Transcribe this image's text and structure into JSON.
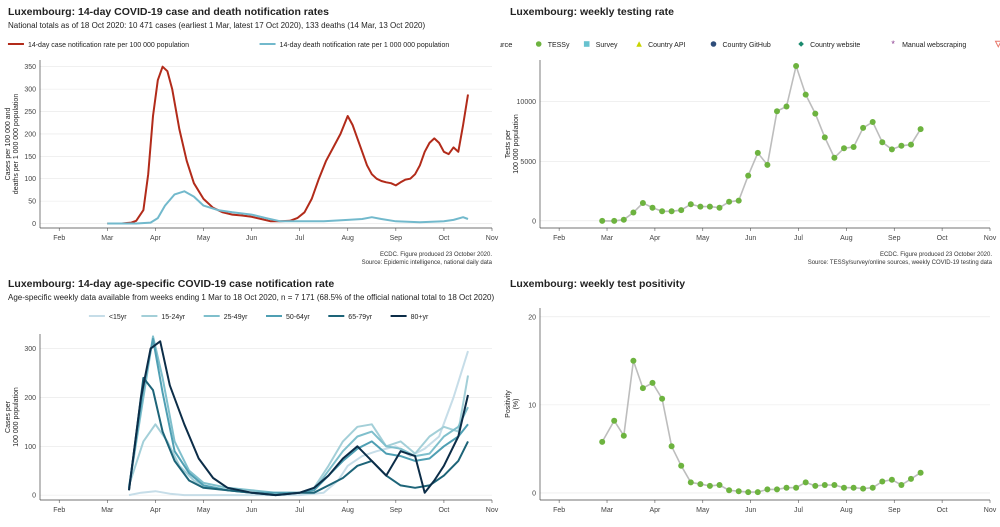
{
  "panels": {
    "p1": {
      "title": "Luxembourg: 14-day COVID-19 case and death notification rates",
      "subtitle": "National totals as of 18 Oct 2020: 10 471 cases (earliest 1 Mar, latest 17 Oct 2020), 133 deaths (14 Mar, 13 Oct 2020)",
      "footer1": "ECDC. Figure produced 23 October 2020.",
      "footer2": "Source: Epidemic intelligence, national daily data"
    },
    "p2": {
      "title": "Luxembourg: weekly testing rate",
      "footer1": "ECDC. Figure produced 23 October 2020.",
      "footer2": "Source: TESSy/survey/online sources, weekly COVID-19 testing data"
    },
    "p3": {
      "title": "Luxembourg: 14-day age-specific COVID-19 case notification rate",
      "subtitle": "Age-specific weekly data available from weeks ending 1 Mar to 18 Oct 2020, n = 7 171 (68.5% of the official national total to 18 Oct 2020)"
    },
    "p4": {
      "title": "Luxembourg: weekly test positivity"
    }
  },
  "chart_data": [
    {
      "type": "line",
      "title": "Luxembourg: 14-day COVID-19 case and death notification rates",
      "ylabel": "Cases per 100 000 and deaths per 1 000 000 population",
      "ylabel_lines": [
        "Cases per 100 000 and",
        "deaths per 1 000 000 population"
      ],
      "x_ticks": [
        "Feb",
        "Mar",
        "Apr",
        "May",
        "Jun",
        "Jul",
        "Aug",
        "Sep",
        "Oct",
        "Nov"
      ],
      "y_ticks": [
        "0",
        "50",
        "100",
        "150",
        "200",
        "250",
        "300",
        "350"
      ],
      "xlim_month": [
        0.6,
        10.0
      ],
      "ylim": [
        -10,
        365
      ],
      "legend_position": "top",
      "grid": true,
      "series": [
        {
          "name": "14-day case notification rate per 100 000 population",
          "color": "#b22b1a",
          "x": [
            2.0,
            2.3,
            2.5,
            2.6,
            2.75,
            2.85,
            2.95,
            3.05,
            3.15,
            3.25,
            3.35,
            3.5,
            3.65,
            3.8,
            4.0,
            4.2,
            4.4,
            4.6,
            4.8,
            5.0,
            5.2,
            5.4,
            5.6,
            5.8,
            5.95,
            6.1,
            6.25,
            6.4,
            6.55,
            6.7,
            6.85,
            7.0,
            7.1,
            7.2,
            7.3,
            7.4,
            7.5,
            7.6,
            7.7,
            7.8,
            7.9,
            8.0,
            8.1,
            8.2,
            8.3,
            8.4,
            8.5,
            8.6,
            8.7,
            8.8,
            8.9,
            9.0,
            9.1,
            9.2,
            9.3,
            9.4,
            9.5
          ],
          "y": [
            0,
            0,
            2,
            6,
            30,
            110,
            240,
            320,
            350,
            340,
            300,
            210,
            140,
            90,
            55,
            35,
            25,
            20,
            18,
            15,
            10,
            5,
            5,
            6,
            12,
            25,
            55,
            100,
            140,
            170,
            200,
            240,
            220,
            190,
            160,
            130,
            110,
            100,
            95,
            92,
            90,
            85,
            92,
            98,
            100,
            110,
            130,
            160,
            180,
            190,
            180,
            160,
            155,
            170,
            160,
            220,
            288
          ]
        },
        {
          "name": "14-day death notification rate per 1 000 000 population",
          "color": "#72b9cc",
          "x": [
            2.0,
            2.6,
            2.9,
            3.05,
            3.2,
            3.4,
            3.6,
            3.8,
            4.0,
            4.3,
            4.6,
            5.0,
            5.3,
            5.6,
            6.0,
            6.5,
            7.0,
            7.3,
            7.5,
            7.7,
            8.0,
            8.5,
            9.0,
            9.2,
            9.4,
            9.5
          ],
          "y": [
            0,
            0,
            2,
            12,
            40,
            65,
            72,
            60,
            40,
            30,
            25,
            20,
            12,
            5,
            5,
            5,
            8,
            10,
            14,
            10,
            5,
            3,
            5,
            8,
            14,
            10
          ]
        }
      ]
    },
    {
      "type": "scatter",
      "title": "Luxembourg: weekly testing rate",
      "ylabel": "Tests per 100 000 population",
      "ylabel_lines": [
        "Tests per",
        "100 000 population"
      ],
      "x_ticks": [
        "Feb",
        "Mar",
        "Apr",
        "May",
        "Jun",
        "Jul",
        "Aug",
        "Sep",
        "Oct",
        "Nov"
      ],
      "y_ticks": [
        "0",
        "5000",
        "10000"
      ],
      "xlim_month": [
        0.6,
        10.0
      ],
      "ylim": [
        -600,
        13500
      ],
      "legend_title": "Source",
      "legend_position": "top",
      "legend": [
        {
          "name": "TESSy",
          "color": "#6db33f",
          "shape": "circle"
        },
        {
          "name": "Survey",
          "color": "#67c2cf",
          "shape": "square"
        },
        {
          "name": "Country API",
          "color": "#c8d400",
          "shape": "triangle"
        },
        {
          "name": "Country GitHub",
          "color": "#2e4d7a",
          "shape": "circle"
        },
        {
          "name": "Country website",
          "color": "#1a8a6e",
          "shape": "diamond"
        },
        {
          "name": "Manual webscraping",
          "color": "#8a3b8f",
          "shape": "star"
        },
        {
          "name": "Other",
          "color": "#e8776a",
          "shape": "triangle-down"
        }
      ],
      "grid": true,
      "series": [
        {
          "name": "TESSy",
          "color": "#6db33f",
          "x": [
            1.9,
            2.15,
            2.35,
            2.55,
            2.75,
            2.95,
            3.15,
            3.35,
            3.55,
            3.75,
            3.95,
            4.15,
            4.35,
            4.55,
            4.75,
            4.95,
            5.15,
            5.35,
            5.55,
            5.75,
            5.95,
            6.15,
            6.35,
            6.55,
            6.75,
            6.95,
            7.15,
            7.35,
            7.55,
            7.75,
            7.95,
            8.15,
            8.35,
            8.55,
            8.75,
            8.95,
            9.15,
            9.35,
            9.55
          ],
          "y": [
            0,
            0,
            100,
            700,
            1500,
            1100,
            800,
            800,
            900,
            1400,
            1200,
            1200,
            1100,
            1600,
            1700,
            3800,
            5700,
            4700,
            9200,
            9600,
            13000,
            10600,
            9000,
            7000,
            5300,
            6100,
            6200,
            7800,
            8300,
            6600,
            6000,
            6300,
            6400,
            7700,
            7800,
            7800,
            7800,
            7800,
            7800
          ]
        }
      ]
    },
    {
      "type": "line",
      "title": "Luxembourg: 14-day age-specific COVID-19 case notification rate",
      "ylabel": "Cases per 100 000 population",
      "ylabel_lines": [
        "Cases per",
        "100 000 population"
      ],
      "x_ticks": [
        "Feb",
        "Mar",
        "Apr",
        "May",
        "Jun",
        "Jul",
        "Aug",
        "Sep",
        "Oct",
        "Nov"
      ],
      "y_ticks": [
        "0",
        "100",
        "200",
        "300"
      ],
      "xlim_month": [
        0.6,
        10.0
      ],
      "ylim": [
        -10,
        330
      ],
      "legend_position": "top",
      "grid": true,
      "series": [
        {
          "name": "<15yr",
          "color": "#c6dde8",
          "x": [
            2.45,
            2.7,
            3.0,
            3.3,
            3.6,
            4.0,
            4.5,
            5.0,
            5.5,
            6.0,
            6.5,
            6.8,
            7.0,
            7.3,
            7.6,
            8.0,
            8.3,
            8.6,
            8.9,
            9.2,
            9.5
          ],
          "y": [
            0,
            5,
            8,
            3,
            0,
            0,
            0,
            0,
            0,
            0,
            5,
            30,
            60,
            80,
            90,
            100,
            80,
            95,
            120,
            200,
            295
          ]
        },
        {
          "name": "15-24yr",
          "color": "#a3cfd8",
          "x": [
            2.45,
            2.75,
            3.0,
            3.25,
            3.5,
            3.8,
            4.1,
            4.5,
            5.0,
            5.5,
            6.0,
            6.3,
            6.6,
            6.9,
            7.2,
            7.5,
            7.8,
            8.1,
            8.4,
            8.7,
            9.0,
            9.3,
            9.5
          ],
          "y": [
            20,
            110,
            145,
            110,
            60,
            30,
            15,
            10,
            5,
            5,
            5,
            15,
            60,
            110,
            140,
            145,
            100,
            110,
            85,
            120,
            140,
            130,
            245
          ]
        },
        {
          "name": "25-49yr",
          "color": "#7fbfcc",
          "x": [
            2.45,
            2.75,
            2.95,
            3.15,
            3.4,
            3.7,
            4.0,
            4.5,
            5.0,
            5.5,
            6.0,
            6.3,
            6.6,
            6.9,
            7.2,
            7.5,
            7.8,
            8.1,
            8.4,
            8.7,
            9.0,
            9.3,
            9.5
          ],
          "y": [
            15,
            200,
            325,
            240,
            110,
            50,
            25,
            15,
            10,
            5,
            5,
            10,
            50,
            90,
            120,
            130,
            100,
            95,
            80,
            85,
            120,
            140,
            180
          ]
        },
        {
          "name": "50-64yr",
          "color": "#4f9fb3",
          "x": [
            2.45,
            2.75,
            2.95,
            3.15,
            3.4,
            3.7,
            4.0,
            4.5,
            5.0,
            5.5,
            6.0,
            6.3,
            6.6,
            6.9,
            7.2,
            7.5,
            7.8,
            8.1,
            8.4,
            8.7,
            9.0,
            9.3,
            9.5
          ],
          "y": [
            15,
            220,
            320,
            210,
            90,
            45,
            20,
            10,
            5,
            5,
            5,
            10,
            40,
            70,
            95,
            110,
            85,
            80,
            70,
            75,
            100,
            120,
            145
          ]
        },
        {
          "name": "65-79yr",
          "color": "#1d6478",
          "x": [
            2.45,
            2.75,
            2.95,
            3.15,
            3.4,
            3.7,
            4.0,
            4.5,
            5.0,
            5.5,
            6.0,
            6.3,
            6.6,
            6.9,
            7.2,
            7.5,
            7.8,
            8.1,
            8.4,
            8.7,
            9.0,
            9.3,
            9.5
          ],
          "y": [
            10,
            240,
            215,
            130,
            70,
            30,
            15,
            10,
            5,
            0,
            5,
            5,
            20,
            35,
            60,
            70,
            40,
            20,
            15,
            20,
            40,
            70,
            110
          ]
        },
        {
          "name": "80+yr",
          "color": "#0c2d48",
          "x": [
            2.45,
            2.7,
            2.9,
            3.1,
            3.3,
            3.6,
            3.9,
            4.2,
            4.5,
            5.0,
            5.5,
            6.0,
            6.3,
            6.6,
            6.9,
            7.2,
            7.5,
            7.8,
            8.1,
            8.4,
            8.6,
            8.8,
            9.0,
            9.3,
            9.5
          ],
          "y": [
            10,
            200,
            300,
            315,
            225,
            145,
            75,
            35,
            15,
            5,
            0,
            5,
            15,
            40,
            75,
            100,
            70,
            40,
            90,
            80,
            5,
            30,
            60,
            120,
            205
          ]
        }
      ]
    },
    {
      "type": "scatter",
      "title": "Luxembourg: weekly test positivity",
      "ylabel": "Positivity (%)",
      "ylabel_lines": [
        "Positivity",
        "(%)"
      ],
      "x_ticks": [
        "Feb",
        "Mar",
        "Apr",
        "May",
        "Jun",
        "Jul",
        "Aug",
        "Sep",
        "Oct",
        "Nov"
      ],
      "y_ticks": [
        "0",
        "10",
        "20"
      ],
      "xlim_month": [
        0.6,
        10.0
      ],
      "ylim": [
        -0.8,
        21
      ],
      "grid": true,
      "series": [
        {
          "name": "TESSy",
          "color": "#6db33f",
          "x": [
            1.9,
            2.15,
            2.35,
            2.55,
            2.75,
            2.95,
            3.15,
            3.35,
            3.55,
            3.75,
            3.95,
            4.15,
            4.35,
            4.55,
            4.75,
            4.95,
            5.15,
            5.35,
            5.55,
            5.75,
            5.95,
            6.15,
            6.35,
            6.55,
            6.75,
            6.95,
            7.15,
            7.35,
            7.55,
            7.75,
            7.95,
            8.15,
            8.35,
            8.55,
            8.75,
            8.95,
            9.15,
            9.35,
            9.55
          ],
          "y": [
            5.8,
            8.2,
            6.5,
            15.0,
            11.9,
            12.5,
            10.7,
            5.3,
            3.1,
            1.2,
            1.0,
            0.8,
            0.9,
            0.3,
            0.2,
            0.1,
            0.1,
            0.4,
            0.4,
            0.6,
            0.6,
            1.2,
            0.8,
            0.9,
            0.9,
            0.6,
            0.6,
            0.5,
            0.6,
            1.3,
            1.5,
            0.9,
            1.6,
            2.3,
            2.3,
            2.3,
            2.3,
            2.3,
            2.3
          ]
        }
      ]
    }
  ]
}
